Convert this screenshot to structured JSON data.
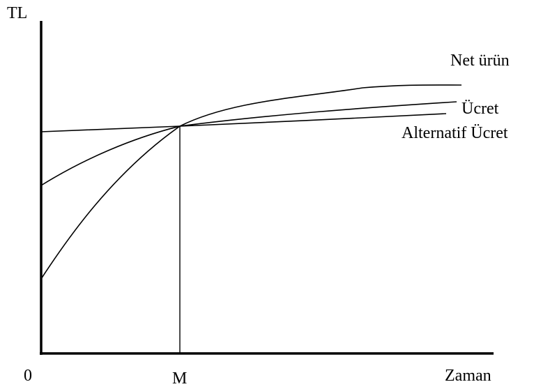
{
  "diagram": {
    "y_axis_label": "TL",
    "x_axis_label": "Zaman",
    "origin_label": "0",
    "x_marker_label": "M",
    "curves": [
      {
        "id": "net-urun",
        "label": "Net ürün"
      },
      {
        "id": "ucret",
        "label": "Ücret"
      },
      {
        "id": "alternatif-ucret",
        "label": "Alternatif Ücret"
      }
    ]
  },
  "colors": {
    "line": "#000000",
    "background": "#ffffff"
  }
}
